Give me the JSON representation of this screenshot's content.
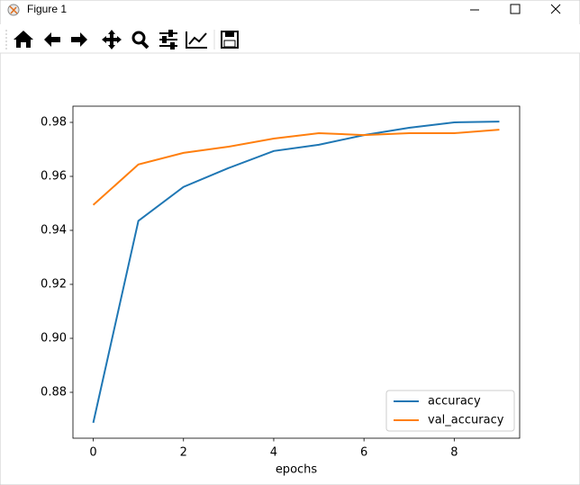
{
  "window": {
    "title": "Figure 1"
  },
  "chart_data": {
    "type": "line",
    "xlabel": "epochs",
    "x": [
      0,
      1,
      2,
      3,
      4,
      5,
      6,
      7,
      8,
      9
    ],
    "series": [
      {
        "name": "accuracy",
        "color": "#1f77b4",
        "values": [
          0.8687,
          0.9435,
          0.9561,
          0.9631,
          0.9694,
          0.9717,
          0.9753,
          0.978,
          0.98,
          0.9803
        ]
      },
      {
        "name": "val_accuracy",
        "color": "#ff7f0e",
        "values": [
          0.9494,
          0.9644,
          0.9687,
          0.971,
          0.974,
          0.976,
          0.9753,
          0.976,
          0.976,
          0.9773
        ]
      }
    ],
    "xlim": [
      -0.45,
      9.45
    ],
    "xticks": [
      0,
      2,
      4,
      6,
      8
    ],
    "ylim": [
      0.863,
      0.986
    ],
    "yticks": [
      0.88,
      {
        "value": 0.9,
        "label": "0.90"
      },
      0.92,
      0.94,
      0.96,
      0.98
    ],
    "legend": "lower right",
    "grid": false
  }
}
